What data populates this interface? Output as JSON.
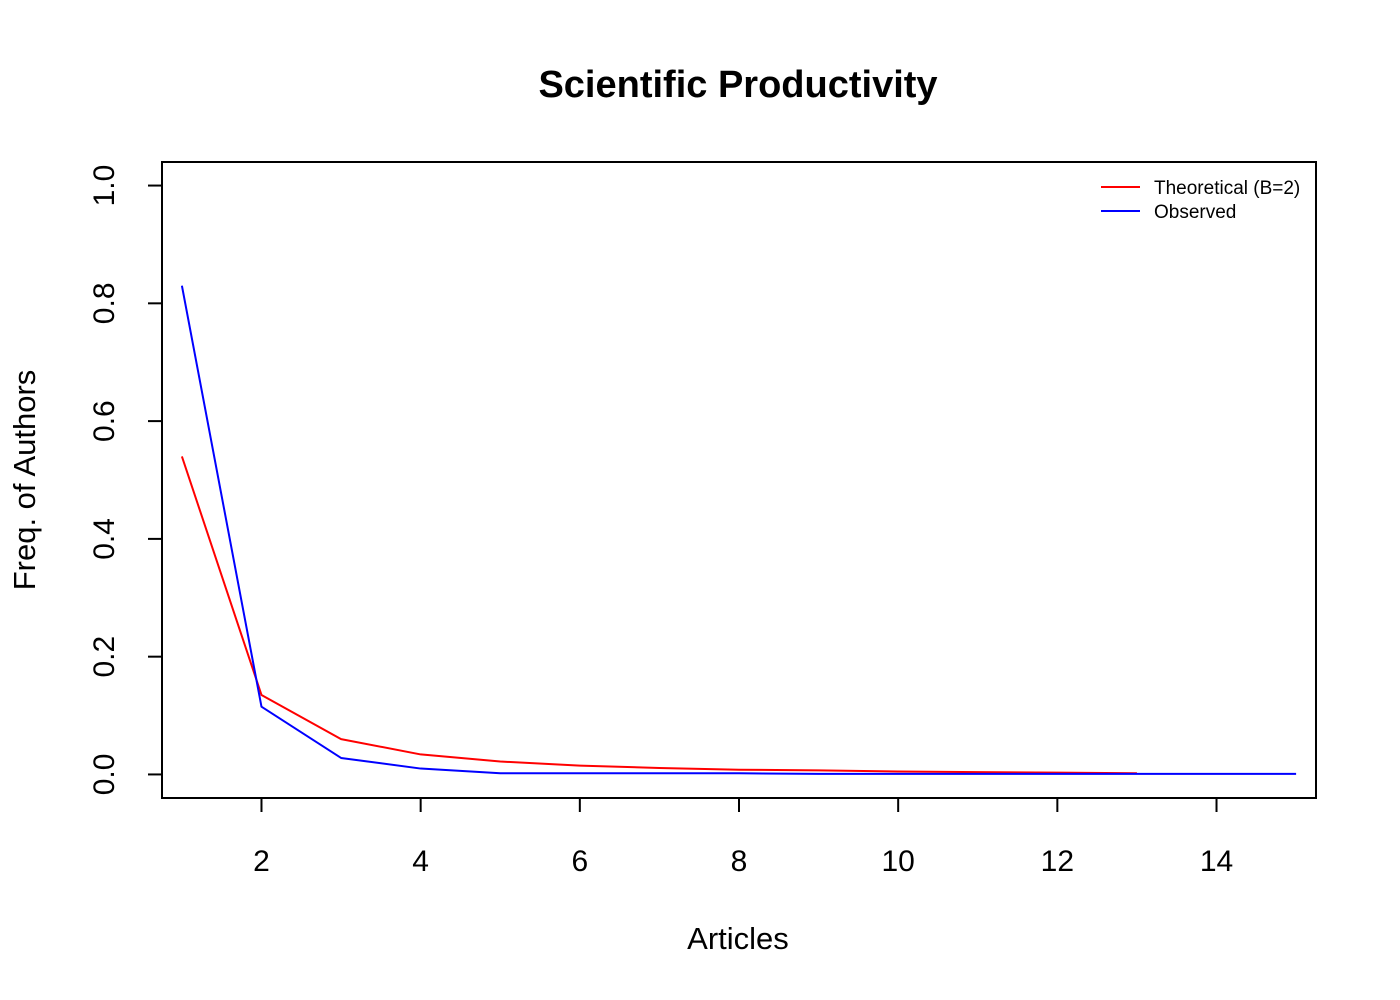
{
  "chart_data": {
    "type": "line",
    "title": "Scientific Productivity",
    "xlabel": "Articles",
    "ylabel": "Freq. of Authors",
    "xlim": [
      0.75,
      15.25
    ],
    "ylim": [
      -0.04,
      1.04
    ],
    "x_ticks": [
      2,
      4,
      6,
      8,
      10,
      12,
      14
    ],
    "y_ticks": [
      0.0,
      0.2,
      0.4,
      0.6,
      0.8,
      1.0
    ],
    "y_tick_labels": [
      "0.0",
      "0.2",
      "0.4",
      "0.6",
      "0.8",
      "1.0"
    ],
    "grid": false,
    "legend_position": "top-right",
    "series": [
      {
        "name": "Theoretical (B=2)",
        "color": "#ff0000",
        "x": [
          1,
          2,
          3,
          4,
          5,
          6,
          7,
          8,
          9,
          10,
          11,
          12,
          13
        ],
        "values": [
          0.54,
          0.135,
          0.06,
          0.034,
          0.022,
          0.015,
          0.011,
          0.008,
          0.007,
          0.005,
          0.004,
          0.003,
          0.002
        ]
      },
      {
        "name": "Observed",
        "color": "#0000ff",
        "x": [
          1,
          2,
          3,
          4,
          5,
          6,
          7,
          8,
          9,
          10,
          11,
          12,
          13,
          14,
          15
        ],
        "values": [
          0.83,
          0.115,
          0.028,
          0.01,
          0.002,
          0.002,
          0.002,
          0.002,
          0.001,
          0.001,
          0.001,
          0.001,
          0.001,
          0.001,
          0.001
        ]
      }
    ]
  }
}
